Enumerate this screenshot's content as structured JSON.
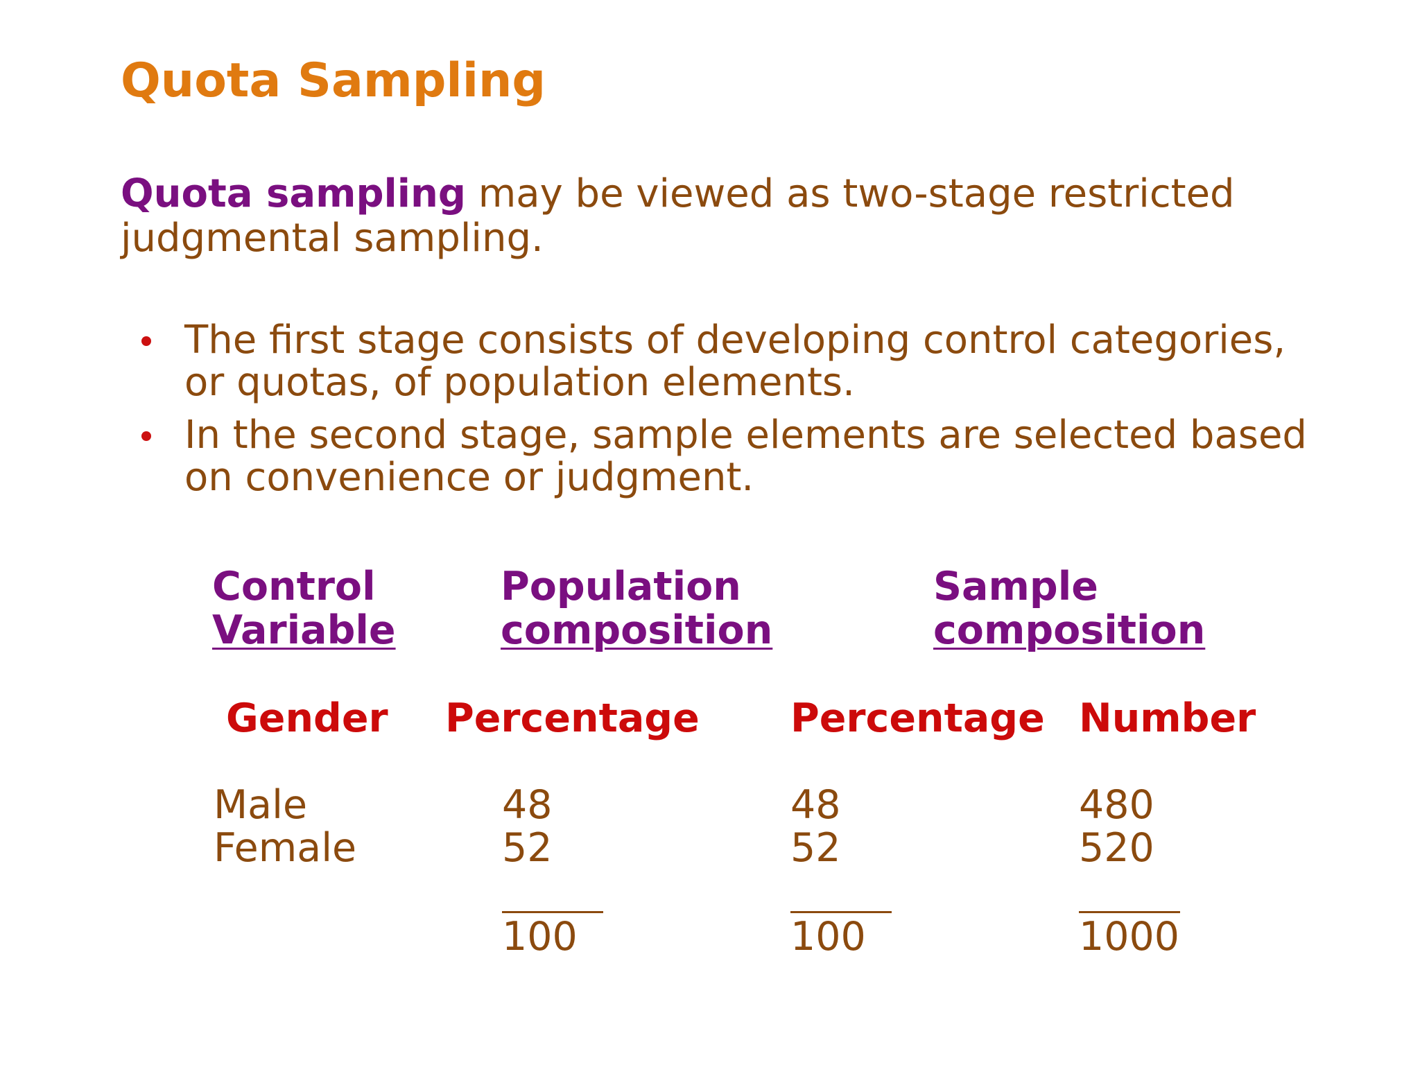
{
  "slide": {
    "title": "Quota Sampling",
    "intro": {
      "term": "Quota sampling",
      "rest_line1": " may be viewed as two-stage restricted",
      "rest_line2": "judgmental sampling."
    },
    "bullets": [
      {
        "line1": "The first stage consists of developing control categories,",
        "line2": "or quotas, of population elements."
      },
      {
        "line1": "In the second stage, sample elements are selected based",
        "line2": "on convenience or judgment."
      }
    ],
    "table": {
      "headers": {
        "control_line1": "Control",
        "control_line2": "Variable",
        "population_line1": "Population",
        "population_line2": "composition",
        "sample_line1": "Sample",
        "sample_line2": "composition"
      },
      "subheaders": {
        "gender": "Gender",
        "pop_percentage": "Percentage",
        "sample_percentage": "Percentage",
        "sample_number": "Number"
      },
      "rows": [
        {
          "variable": "Male",
          "pop_percentage": "48",
          "sample_percentage": "48",
          "sample_number": "480"
        },
        {
          "variable": "Female",
          "pop_percentage": "52",
          "sample_percentage": "52",
          "sample_number": "520"
        }
      ],
      "totals": {
        "pop_percentage": "100",
        "sample_percentage": "100",
        "sample_number": "1000"
      }
    }
  },
  "colors": {
    "title": "#E07A10",
    "body_text": "#8B4A0E",
    "term": "#7A0F80",
    "subheader": "#CC0A0A",
    "bullet": "#CC1010"
  }
}
